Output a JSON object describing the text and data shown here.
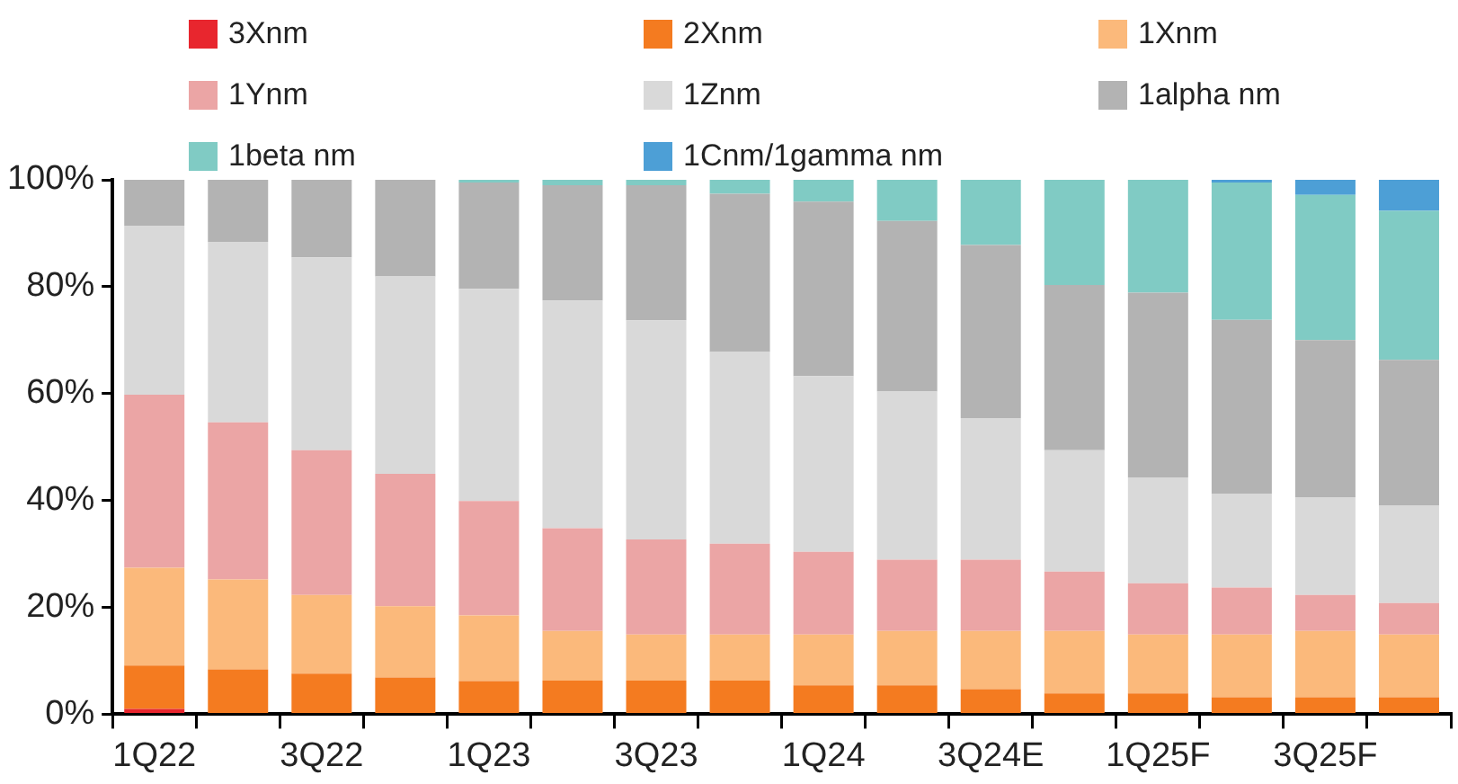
{
  "chart_data": {
    "type": "bar",
    "stacked": true,
    "categories": [
      "1Q22",
      null,
      "3Q22",
      null,
      "1Q23",
      null,
      "3Q23",
      null,
      "1Q24",
      null,
      "3Q24E",
      null,
      "1Q25F",
      null,
      "3Q25F",
      null
    ],
    "series": [
      {
        "name": "3Xnm",
        "color": "#e8262e",
        "values": [
          1.0,
          0,
          0,
          0,
          0,
          0,
          0,
          0,
          0,
          0,
          0,
          0,
          0,
          0,
          0,
          0
        ]
      },
      {
        "name": "2Xnm",
        "color": "#f47b20",
        "values": [
          8.1,
          8.4,
          7.6,
          6.9,
          6.2,
          6.3,
          6.3,
          6.3,
          5.4,
          5.4,
          4.7,
          3.9,
          3.9,
          3.2,
          3.2,
          3.2
        ]
      },
      {
        "name": "1Xnm",
        "color": "#fbb97b",
        "values": [
          18.3,
          16.8,
          14.7,
          13.3,
          12.3,
          9.3,
          8.6,
          8.6,
          9.5,
          10.2,
          10.9,
          11.7,
          11.0,
          11.7,
          12.4,
          11.7
        ]
      },
      {
        "name": "1Ynm",
        "color": "#eba5a5",
        "values": [
          32.4,
          29.4,
          27.1,
          24.8,
          21.4,
          19.2,
          17.8,
          17.0,
          15.5,
          13.3,
          13.3,
          11.1,
          9.6,
          8.8,
          6.7,
          5.9
        ]
      },
      {
        "name": "1Znm",
        "color": "#d9d9d9",
        "values": [
          31.6,
          33.8,
          36.1,
          36.9,
          39.7,
          42.6,
          41.0,
          35.9,
          32.9,
          31.5,
          26.5,
          22.7,
          19.8,
          17.6,
          18.3,
          18.3
        ]
      },
      {
        "name": "1alpha nm",
        "color": "#b3b3b3",
        "values": [
          8.6,
          11.6,
          14.5,
          18.1,
          19.9,
          21.6,
          25.3,
          29.6,
          32.6,
          31.9,
          32.4,
          30.9,
          34.6,
          32.5,
          29.4,
          27.2
        ]
      },
      {
        "name": "1beta nm",
        "color": "#80cbc4",
        "values": [
          0,
          0,
          0,
          0,
          0.5,
          1.0,
          1.0,
          2.6,
          4.1,
          7.7,
          12.2,
          19.7,
          21.1,
          25.7,
          27.2,
          27.9
        ]
      },
      {
        "name": "1Cnm/1gamma nm",
        "color": "#4d9fd6",
        "values": [
          0,
          0,
          0,
          0,
          0,
          0,
          0,
          0,
          0,
          0,
          0,
          0,
          0,
          0.5,
          2.8,
          5.8
        ]
      }
    ],
    "ylim": [
      0,
      100
    ],
    "yticks": [
      {
        "value": 0,
        "label": "0%"
      },
      {
        "value": 20,
        "label": "20%"
      },
      {
        "value": 40,
        "label": "40%"
      },
      {
        "value": 60,
        "label": "60%"
      },
      {
        "value": 80,
        "label": "80%"
      },
      {
        "value": 100,
        "label": "100%"
      }
    ],
    "grid": false,
    "legend": "top"
  }
}
